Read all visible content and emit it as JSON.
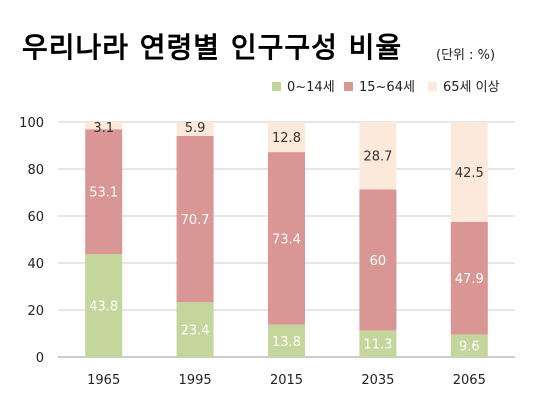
{
  "title": "우리나라 연령별 인구구성 비율",
  "unit": "(단위 : %)",
  "colors": {
    "c0_14": "#c3d69b",
    "c15_64": "#d99694",
    "c65": "#fde9d9",
    "grid": "#cccccc",
    "label_light": "#ffffff",
    "label_dark": "#333333"
  },
  "chart_data": {
    "type": "bar",
    "stacked": true,
    "categories": [
      "1965",
      "1995",
      "2015",
      "2035",
      "2065"
    ],
    "series": [
      {
        "name": "0~14세",
        "values": [
          43.8,
          23.4,
          13.8,
          11.3,
          9.6
        ]
      },
      {
        "name": "15~64세",
        "values": [
          53.1,
          70.7,
          73.4,
          60,
          47.9
        ]
      },
      {
        "name": "65세 이상",
        "values": [
          3.1,
          5.9,
          12.8,
          28.7,
          42.5
        ]
      }
    ],
    "ylim": [
      0,
      100
    ],
    "yticks": [
      0,
      20,
      40,
      60,
      80,
      100
    ],
    "grid": true,
    "legend_position": "top-right"
  }
}
